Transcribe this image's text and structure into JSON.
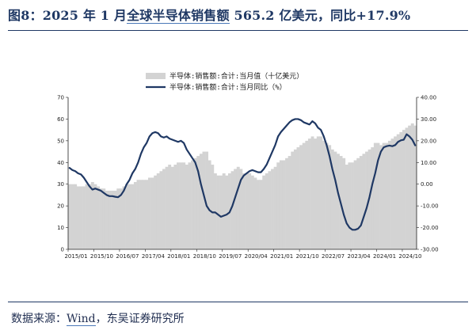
{
  "header": {
    "title_prefix": "图8：2025 年 1 月",
    "title_link": "全球半导体销售额",
    "title_suffix": " 565.2 亿美元，同比+17.9%"
  },
  "footer": {
    "source_label": "数据来源：",
    "source_link": "Wind",
    "source_rest": "，东吴证券研究所"
  },
  "chart_data": {
    "type": "bar+line",
    "x_tick_labels": [
      "2015/01",
      "2015/10",
      "2016/07",
      "2017/04",
      "2018/01",
      "2018/10",
      "2019/07",
      "2020/04",
      "2021/01",
      "2021/10",
      "2022/07",
      "2023/04",
      "2024/01",
      "2024/10"
    ],
    "y_left": {
      "min": 0,
      "max": 70,
      "ticks": [
        "0",
        "10",
        "20",
        "30",
        "40",
        "50",
        "60",
        "70"
      ]
    },
    "y_right": {
      "min": -30,
      "max": 40,
      "ticks": [
        "-30.00",
        "-20.00",
        "-10.00",
        "0.00",
        "10.00",
        "20.00",
        "30.00",
        "40.00"
      ]
    },
    "legend_position": "top-center",
    "colors": {
      "bar": "#d3d3d3",
      "line": "#1f3864"
    },
    "series": [
      {
        "name": "半导体:销售额:合计:当月值（十亿美元）",
        "kind": "bar",
        "axis": "left",
        "start": "2015/01",
        "values": [
          30,
          30,
          30,
          29,
          29,
          29,
          30,
          30,
          31,
          30,
          29,
          28,
          28,
          27,
          27,
          27,
          27,
          28,
          28,
          29,
          30,
          30,
          30,
          31,
          32,
          32,
          32,
          32,
          33,
          33,
          34,
          35,
          36,
          37,
          38,
          39,
          38,
          39,
          40,
          40,
          40,
          39,
          40,
          41,
          42,
          43,
          44,
          45,
          45,
          41,
          39,
          35,
          34,
          34,
          35,
          34,
          35,
          36,
          37,
          38,
          37,
          35,
          35,
          35,
          34,
          33,
          32,
          32,
          34,
          35,
          36,
          37,
          38,
          40,
          41,
          41,
          42,
          43,
          45,
          46,
          47,
          48,
          49,
          50,
          51,
          52,
          51,
          52,
          52,
          50,
          49,
          48,
          46,
          45,
          44,
          43,
          42,
          39,
          40,
          40,
          41,
          42,
          43,
          44,
          45,
          46,
          47,
          49,
          49,
          48,
          49,
          49,
          50,
          51,
          52,
          53,
          54,
          55,
          56,
          57,
          58,
          57
        ]
      },
      {
        "name": "半导体:销售额:合计:当月同比（%）",
        "kind": "line",
        "axis": "right",
        "start": "2015/01",
        "values": [
          7.5,
          6.5,
          6,
          5,
          4.5,
          3,
          1,
          -1,
          -2.5,
          -2,
          -2.5,
          -3,
          -4,
          -5,
          -5.5,
          -5.5,
          -5.8,
          -6,
          -5,
          -3,
          0,
          2,
          5,
          7,
          10,
          14,
          17,
          19,
          22,
          23.5,
          24,
          23.5,
          22,
          21.5,
          22,
          21,
          20.5,
          20,
          19.5,
          20,
          19,
          16,
          14,
          12,
          10,
          6,
          0,
          -5,
          -10,
          -12,
          -13,
          -13,
          -14,
          -15,
          -14.5,
          -14,
          -13,
          -10,
          -6,
          -2,
          2,
          4,
          5,
          6,
          6.5,
          6,
          5.5,
          5.5,
          7,
          9,
          12,
          15,
          18,
          22,
          24,
          25.5,
          27,
          28.5,
          29.5,
          30,
          30,
          29.5,
          28.5,
          28,
          27.5,
          29,
          28,
          26,
          25,
          22,
          18,
          13,
          7,
          2,
          -4,
          -9,
          -14,
          -18,
          -20,
          -21,
          -21,
          -20.5,
          -19,
          -15,
          -11,
          -6,
          0,
          5,
          11,
          15,
          17,
          17.5,
          17.8,
          17.5,
          18,
          19.5,
          20.2,
          20.5,
          23,
          22,
          20.5,
          17.9
        ]
      }
    ]
  }
}
